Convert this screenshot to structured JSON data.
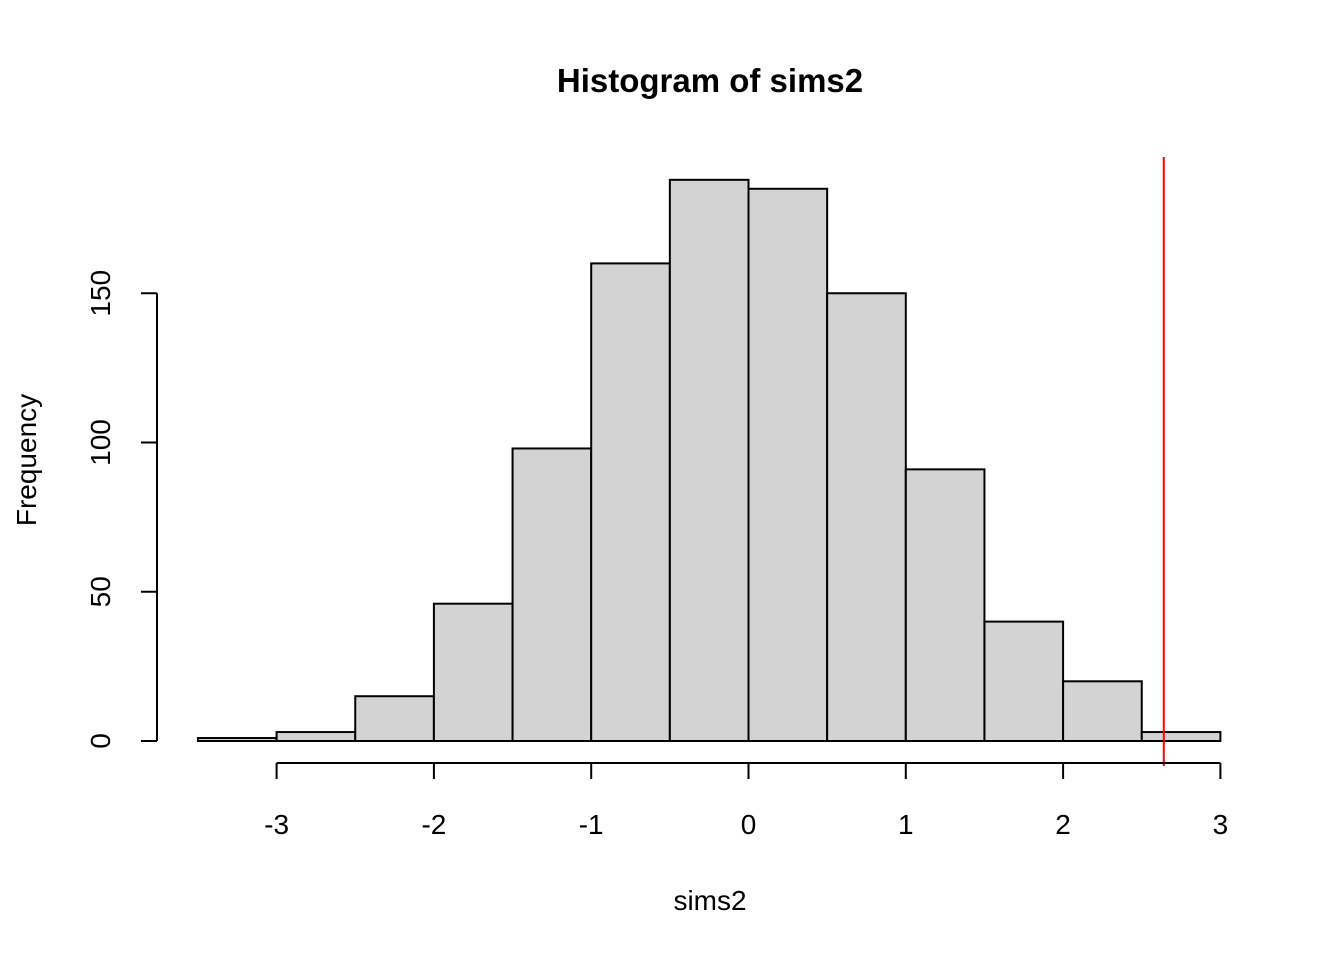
{
  "chart_data": {
    "type": "bar",
    "title": "Histogram of sims2",
    "xlabel": "sims2",
    "ylabel": "Frequency",
    "bin_edges": [
      -3.5,
      -3.0,
      -2.5,
      -2.0,
      -1.5,
      -1.0,
      -0.5,
      0.0,
      0.5,
      1.0,
      1.5,
      2.0,
      2.5,
      3.0
    ],
    "values": [
      1,
      3,
      15,
      46,
      98,
      160,
      188,
      185,
      150,
      91,
      40,
      20,
      3
    ],
    "xlim": [
      -3.5,
      3.0
    ],
    "ylim": [
      0,
      188
    ],
    "x_ticks": [
      -3,
      -2,
      -1,
      0,
      1,
      2,
      3
    ],
    "x_tick_labels": [
      "-3",
      "-2",
      "-1",
      "0",
      "1",
      "2",
      "3"
    ],
    "y_ticks": [
      0,
      50,
      100,
      150
    ],
    "y_tick_labels": [
      "0",
      "50",
      "100",
      "150"
    ],
    "vertical_line": {
      "x": 2.64,
      "color": "#ff0000"
    },
    "grid": false,
    "bar_color": "#d3d3d3",
    "edge_color": "#000000"
  }
}
